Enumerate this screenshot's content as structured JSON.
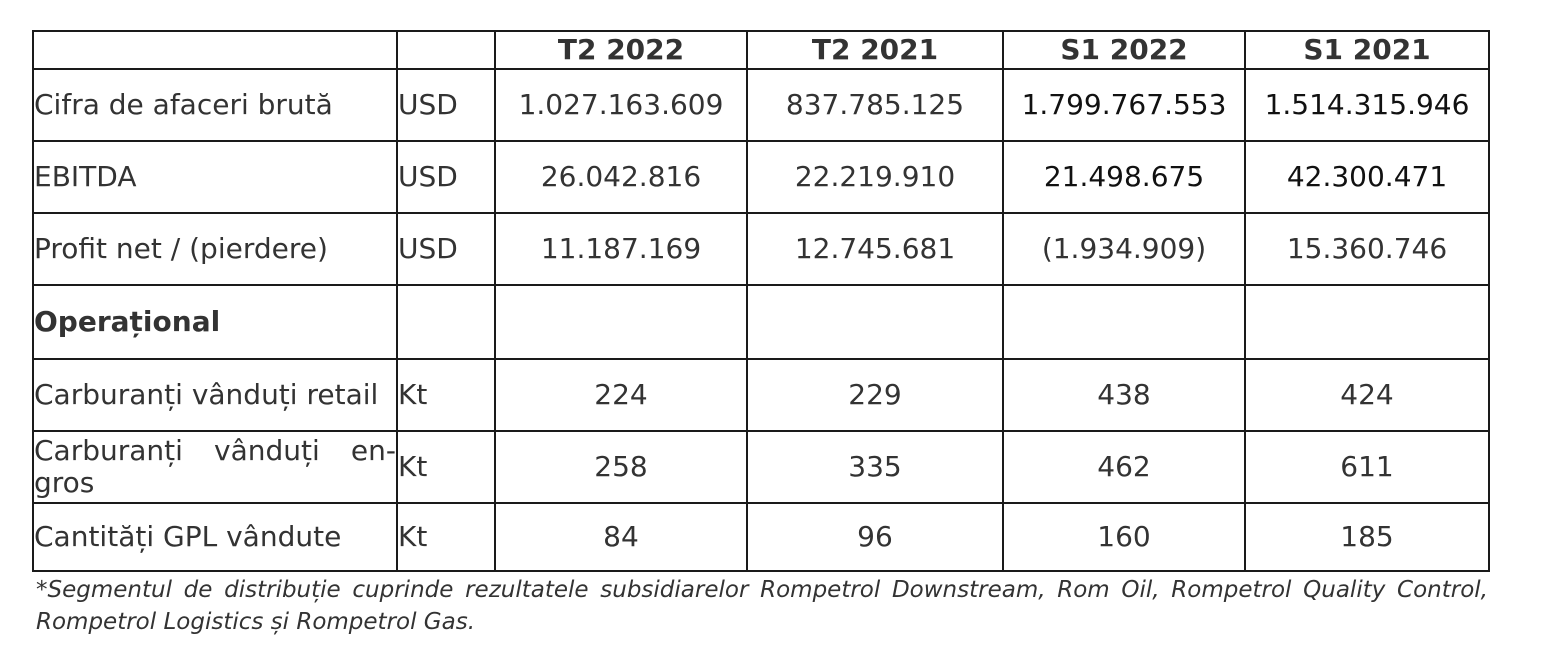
{
  "table": {
    "headers": [
      "",
      "",
      "T2 2022",
      "T2 2021",
      "S1 2022",
      "S1 2021"
    ],
    "financial_rows": [
      {
        "label": "Cifra de afaceri brută",
        "unit": "USD",
        "values": [
          "1.027.163.609",
          "837.785.125",
          "1.799.767.553",
          "1.514.315.946"
        ]
      },
      {
        "label": "EBITDA",
        "unit": "USD",
        "values": [
          "26.042.816",
          "22.219.910",
          "21.498.675",
          "42.300.471"
        ]
      },
      {
        "label": "Profit net / (pierdere)",
        "unit": "USD",
        "values": [
          "11.187.169",
          "12.745.681",
          "(1.934.909)",
          "15.360.746"
        ]
      }
    ],
    "section_title": "Operațional",
    "operational_rows": [
      {
        "label": "Carburanți vânduți retail",
        "unit": "Kt",
        "values": [
          "224",
          "229",
          "438",
          "424"
        ]
      },
      {
        "label": "Carburanți vânduți en-gros",
        "unit": "Kt",
        "values": [
          "258",
          "335",
          "462",
          "611"
        ]
      },
      {
        "label": "Cantități GPL vândute",
        "unit": "Kt",
        "values": [
          "84",
          "96",
          "160",
          "185"
        ]
      }
    ]
  },
  "footnote": "*Segmentul de distribuție cuprinde rezultatele subsidiarelor Rompetrol Downstream, Rom Oil, Rompetrol Quality Control, Rompetrol Logistics și Rompetrol Gas."
}
